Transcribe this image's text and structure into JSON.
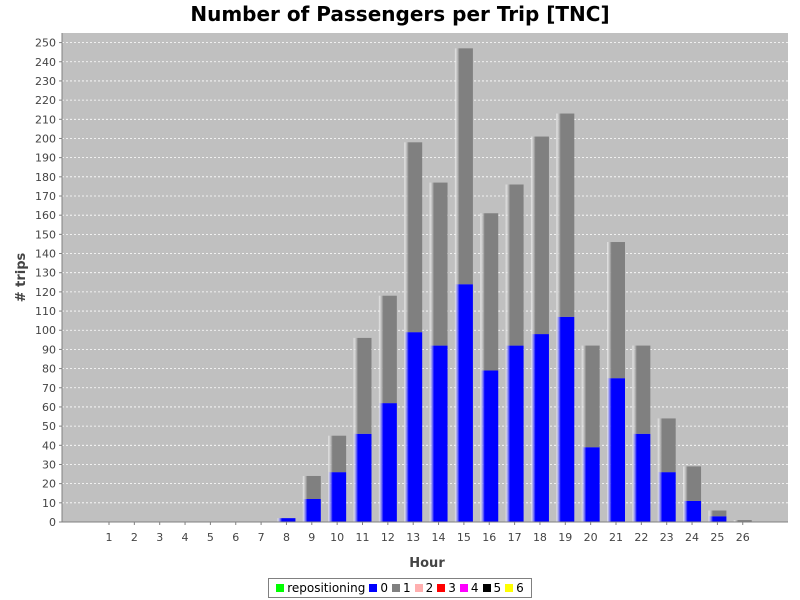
{
  "chart_data": {
    "type": "bar",
    "stacked": true,
    "title": "Number of Passengers per Trip [TNC]",
    "xlabel": "Hour",
    "ylabel": "# trips",
    "categories": [
      "1",
      "2",
      "3",
      "4",
      "5",
      "6",
      "7",
      "8",
      "9",
      "10",
      "11",
      "12",
      "13",
      "14",
      "15",
      "16",
      "17",
      "18",
      "19",
      "20",
      "21",
      "22",
      "23",
      "24",
      "25",
      "26"
    ],
    "ylim": [
      0,
      255
    ],
    "yticks": [
      0,
      10,
      20,
      30,
      40,
      50,
      60,
      70,
      80,
      90,
      100,
      110,
      120,
      130,
      140,
      150,
      160,
      170,
      180,
      190,
      200,
      210,
      220,
      230,
      240,
      250
    ],
    "grid": true,
    "legend_position": "bottom",
    "series": [
      {
        "name": "repositioning",
        "color": "#00ff00",
        "values": [
          0,
          0,
          0,
          0,
          0,
          0,
          0,
          0,
          0,
          0,
          0,
          0,
          0,
          0,
          0,
          0,
          0,
          0,
          0,
          0,
          0,
          0,
          0,
          0,
          0,
          0
        ]
      },
      {
        "name": "0",
        "color": "#0000ff",
        "values": [
          0,
          0,
          0,
          0,
          0,
          0,
          0,
          2,
          12,
          26,
          46,
          62,
          99,
          92,
          124,
          79,
          92,
          98,
          107,
          39,
          75,
          46,
          26,
          11,
          3,
          0
        ]
      },
      {
        "name": "1",
        "color": "#808080",
        "values": [
          0,
          0,
          0,
          0,
          0,
          0,
          0,
          0,
          12,
          19,
          50,
          56,
          99,
          85,
          123,
          82,
          84,
          103,
          106,
          53,
          71,
          46,
          28,
          18,
          3,
          1
        ]
      },
      {
        "name": "2",
        "color": "#ffafaf",
        "values": [
          0,
          0,
          0,
          0,
          0,
          0,
          0,
          0,
          0,
          0,
          0,
          0,
          0,
          0,
          0,
          0,
          0,
          0,
          0,
          0,
          0,
          0,
          0,
          0,
          0,
          0
        ]
      },
      {
        "name": "3",
        "color": "#ff0000",
        "values": [
          0,
          0,
          0,
          0,
          0,
          0,
          0,
          0,
          0,
          0,
          0,
          0,
          0,
          0,
          0,
          0,
          0,
          0,
          0,
          0,
          0,
          0,
          0,
          0,
          0,
          0
        ]
      },
      {
        "name": "4",
        "color": "#ff00ff",
        "values": [
          0,
          0,
          0,
          0,
          0,
          0,
          0,
          0,
          0,
          0,
          0,
          0,
          0,
          0,
          0,
          0,
          0,
          0,
          0,
          0,
          0,
          0,
          0,
          0,
          0,
          0
        ]
      },
      {
        "name": "5",
        "color": "#000000",
        "values": [
          0,
          0,
          0,
          0,
          0,
          0,
          0,
          0,
          0,
          0,
          0,
          0,
          0,
          0,
          0,
          0,
          0,
          0,
          0,
          0,
          0,
          0,
          0,
          0,
          0,
          0
        ]
      },
      {
        "name": "6",
        "color": "#ffff00",
        "values": [
          0,
          0,
          0,
          0,
          0,
          0,
          0,
          0,
          0,
          0,
          0,
          0,
          0,
          0,
          0,
          0,
          0,
          0,
          0,
          0,
          0,
          0,
          0,
          0,
          0,
          0
        ]
      }
    ]
  }
}
